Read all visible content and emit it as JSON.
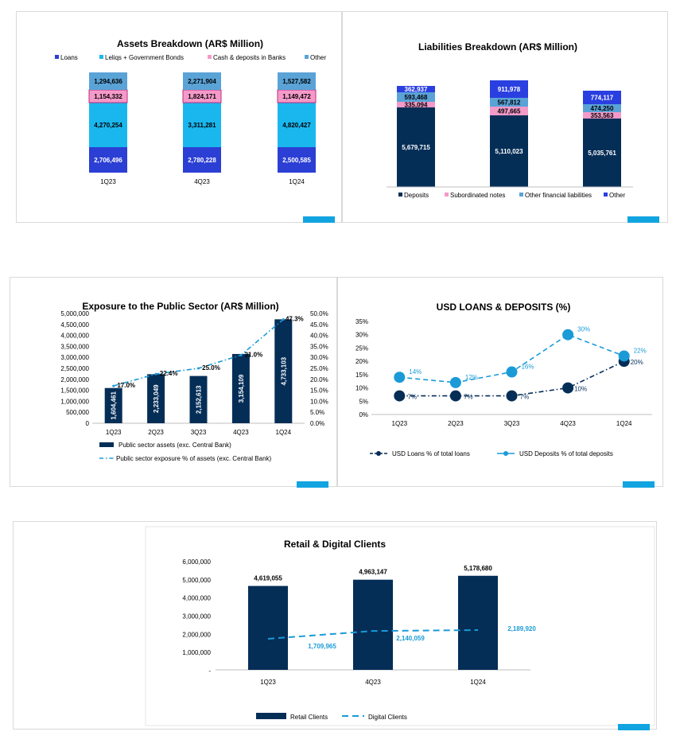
{
  "colors": {
    "navy": "#052e57",
    "loans": "#2b3fd4",
    "cyan": "#1ab7ee",
    "pink": "#f49ac9",
    "lightblue": "#5aa3d7",
    "blue_other": "#2a3fe0",
    "digital": "#1a9bd7",
    "accent": "#12a4e0"
  },
  "chart_data": [
    {
      "id": "assets",
      "type": "bar",
      "stacked": true,
      "title": "Assets Breakdown (AR$ Million)",
      "legend_position": "top",
      "categories": [
        "1Q23",
        "4Q23",
        "1Q24"
      ],
      "series": [
        {
          "name": "Loans",
          "values": [
            2706496,
            2780228,
            2500585
          ],
          "labels": [
            "2,706,496",
            "2,780,228",
            "2,500,585"
          ]
        },
        {
          "name": "Leliqs + Government Bonds",
          "values": [
            4270254,
            3311281,
            4820427
          ],
          "labels": [
            "4,270,254",
            "3,311,281",
            "4,820,427"
          ]
        },
        {
          "name": "Cash & deposits in Banks",
          "values": [
            1154332,
            1824171,
            1149472
          ],
          "labels": [
            "1,154,332",
            "1,824,171",
            "1,149,472"
          ]
        },
        {
          "name": "Other",
          "values": [
            1294636,
            2271904,
            1527582
          ],
          "labels": [
            "1,294,636",
            "2,271,904",
            "1,527,582"
          ]
        }
      ]
    },
    {
      "id": "liabilities",
      "type": "bar",
      "stacked": true,
      "title": "Liabilities Breakdown (AR$ Million)",
      "legend_position": "bottom",
      "categories": [
        "",
        "",
        ""
      ],
      "series": [
        {
          "name": "Deposits",
          "values": [
            5679715,
            5110023,
            5035761
          ],
          "labels": [
            "5,679,715",
            "5,110,023",
            "5,035,761"
          ]
        },
        {
          "name": "Subordinated notes",
          "values": [
            335094,
            497665,
            353563
          ],
          "labels": [
            "335,094",
            "497,665",
            "353,563"
          ]
        },
        {
          "name": "Other financial liabilities",
          "values": [
            593468,
            567812,
            474250
          ],
          "labels": [
            "593,468",
            "567,812",
            "474,250"
          ]
        },
        {
          "name": "Other",
          "values": [
            362937,
            911978,
            774117
          ],
          "labels": [
            "362,937",
            "911,978",
            "774,117"
          ]
        }
      ]
    },
    {
      "id": "public",
      "type": "bar",
      "title": "Exposure to the Public Sector (AR$ Million)",
      "legend_position": "bottom",
      "categories": [
        "1Q23",
        "2Q23",
        "3Q23",
        "4Q23",
        "1Q24"
      ],
      "left_axis": {
        "ylim": [
          0,
          5000000
        ],
        "ticks": [
          "0",
          "500,000",
          "1,000,000",
          "1,500,000",
          "2,000,000",
          "2,500,000",
          "3,000,000",
          "3,500,000",
          "4,000,000",
          "4,500,000",
          "5,000,000"
        ]
      },
      "right_axis": {
        "ylim": [
          0,
          50
        ],
        "ticks": [
          "0.0%",
          "5.0%",
          "10.0%",
          "15.0%",
          "20.0%",
          "25.0%",
          "30.0%",
          "35.0%",
          "40.0%",
          "45.0%",
          "50.0%"
        ]
      },
      "series": [
        {
          "name": "Public sector assets (exc. Central Bank)",
          "type": "bar",
          "values": [
            1604461,
            2233049,
            2152613,
            3154109,
            4733103
          ],
          "labels": [
            "1,604,461",
            "2,233,049",
            "2,152,613",
            "3,154,109",
            "4,733,103"
          ]
        },
        {
          "name": "Public sector exposure % of assets (exc. Central Bank)",
          "type": "line",
          "values": [
            17.0,
            22.4,
            25.0,
            31.0,
            47.3
          ],
          "labels": [
            "17.0%",
            "22.4%",
            "25.0%",
            "31.0%",
            "47.3%"
          ]
        }
      ]
    },
    {
      "id": "usd",
      "type": "line",
      "title": "USD LOANS & DEPOSITS (%)",
      "legend_position": "bottom",
      "categories": [
        "1Q23",
        "2Q23",
        "3Q23",
        "4Q23",
        "1Q24"
      ],
      "ylim": [
        0,
        35
      ],
      "yticks": [
        "0%",
        "5%",
        "10%",
        "15%",
        "20%",
        "25%",
        "30%",
        "35%"
      ],
      "series": [
        {
          "name": "USD Loans % of total loans",
          "values": [
            7,
            7,
            7,
            10,
            20
          ],
          "labels": [
            "7%",
            "7%",
            "7%",
            "10%",
            "20%"
          ]
        },
        {
          "name": "USD Deposits % of total deposits",
          "values": [
            14,
            12,
            16,
            30,
            22
          ],
          "labels": [
            "14%",
            "12%",
            "16%",
            "30%",
            "22%"
          ]
        }
      ]
    },
    {
      "id": "clients",
      "type": "bar",
      "title": "Retail & Digital Clients",
      "legend_position": "bottom",
      "categories": [
        "1Q23",
        "4Q23",
        "1Q24"
      ],
      "ylim": [
        0,
        6000000
      ],
      "yticks": [
        "-",
        "1,000,000",
        "2,000,000",
        "3,000,000",
        "4,000,000",
        "5,000,000",
        "6,000,000"
      ],
      "series": [
        {
          "name": "Retail Clients",
          "type": "bar",
          "values": [
            4619055,
            4963147,
            5178680
          ],
          "labels": [
            "4,619,055",
            "4,963,147",
            "5,178,680"
          ]
        },
        {
          "name": "Digital Clients",
          "type": "line",
          "values": [
            1709965,
            2140059,
            2189920
          ],
          "labels": [
            "1,709,965",
            "2,140,059",
            "2,189,920"
          ]
        }
      ]
    }
  ]
}
